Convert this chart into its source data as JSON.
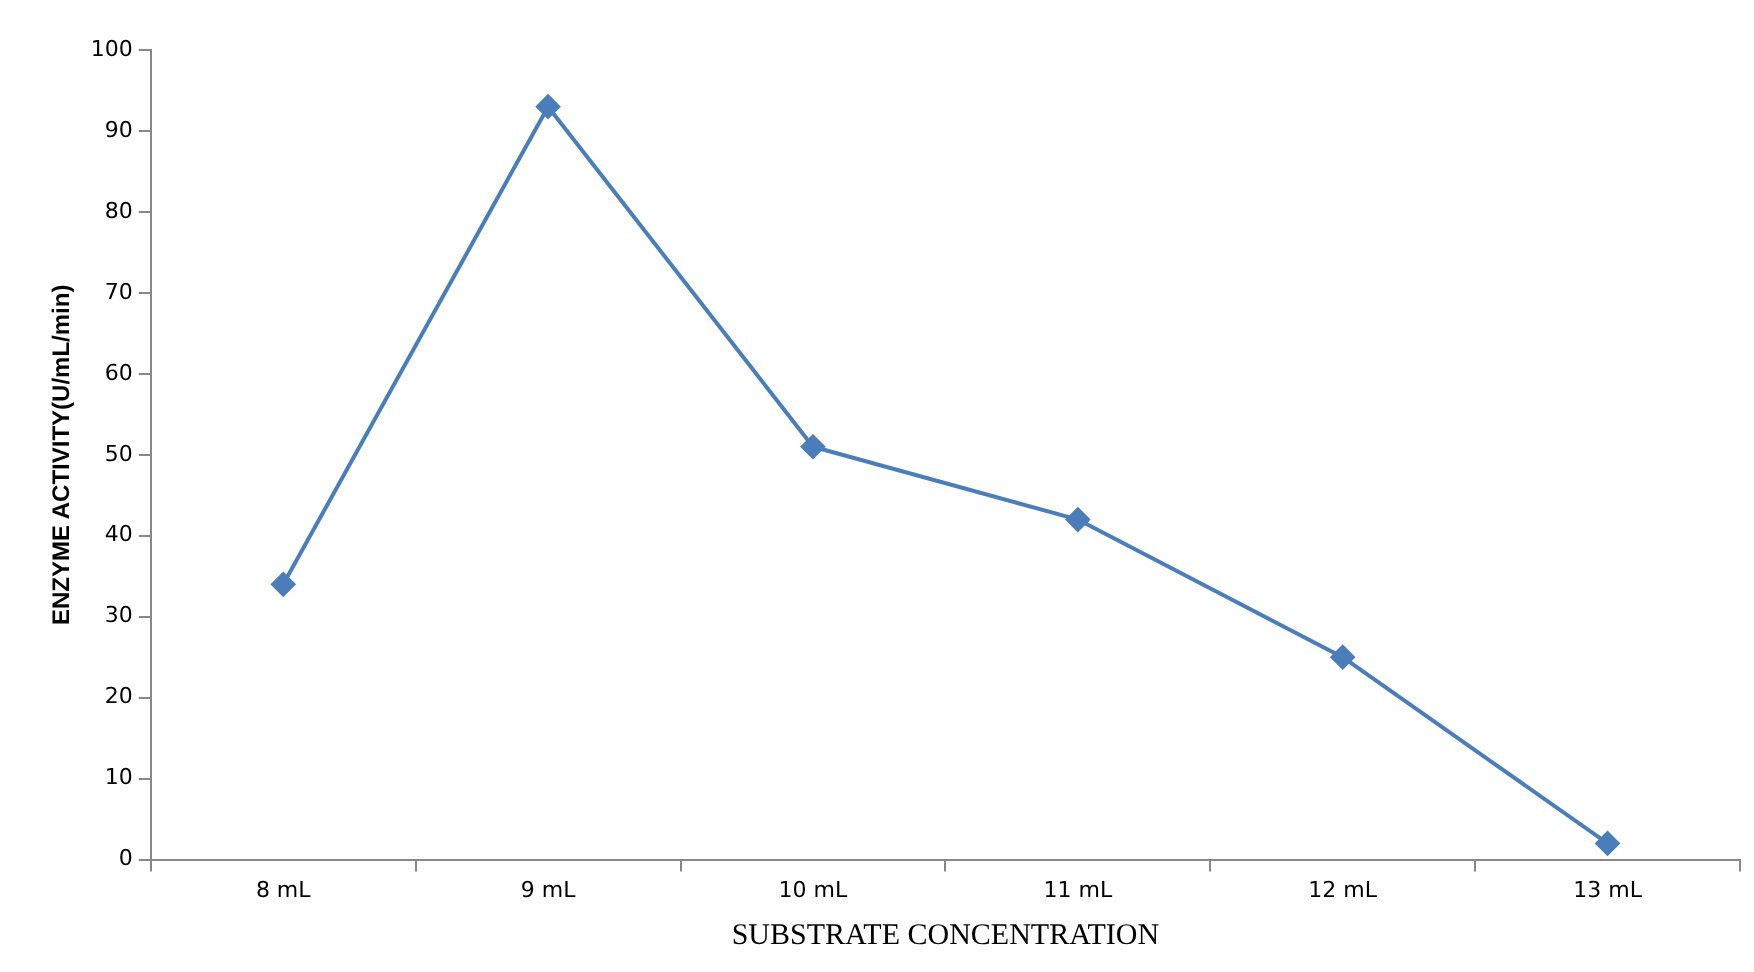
{
  "chart_data": {
    "type": "line",
    "xlabel": "SUBSTRATE CONCENTRATION",
    "ylabel": "ENZYME ACTIVITY(U/mL/min)",
    "categories": [
      "8 mL",
      "9 mL",
      "10 mL",
      "11 mL",
      "12 mL",
      "13 mL"
    ],
    "series": [
      {
        "color": "#4a7ebb",
        "values": [
          34,
          93,
          51,
          42,
          25,
          2
        ]
      }
    ],
    "ylim": [
      0,
      100
    ],
    "yticks": [
      0,
      10,
      20,
      30,
      40,
      50,
      60,
      70,
      80,
      90,
      100
    ],
    "grid": false,
    "legend": false,
    "marker": "diamond",
    "line_style": "solid"
  }
}
